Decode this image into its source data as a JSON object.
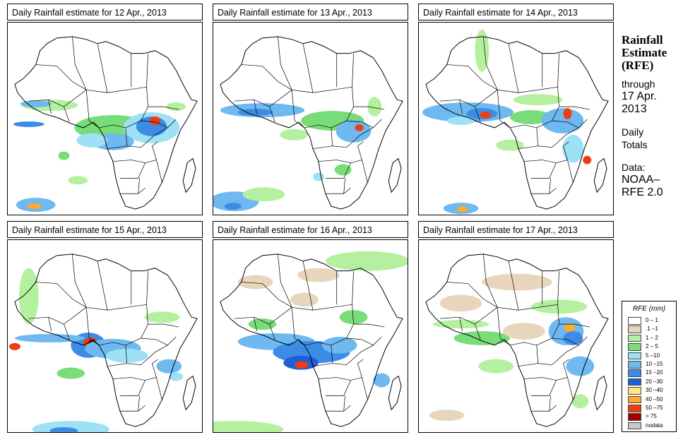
{
  "panels": [
    {
      "title": "Daily Rainfall estimate for  12 Apr., 2013",
      "day": 0
    },
    {
      "title": "Daily Rainfall estimate for  13 Apr., 2013",
      "day": 1
    },
    {
      "title": "Daily Rainfall estimate for  14 Apr., 2013",
      "day": 2
    },
    {
      "title": "Daily Rainfall estimate for  15 Apr., 2013",
      "day": 3
    },
    {
      "title": "Daily Rainfall estimate for  16 Apr., 2013",
      "day": 4
    },
    {
      "title": "Daily Rainfall estimate for  17 Apr., 2013",
      "day": 5
    }
  ],
  "side": {
    "title_line1": "Rainfall",
    "title_line2": "Estimate",
    "title_line3": "(RFE)",
    "through_line1": "through",
    "through_line2": "17 Apr.",
    "through_line3": "2013",
    "totals_line1": "Daily",
    "totals_line2": "Totals",
    "data_line1": "Data:",
    "data_line2": "NOAA–",
    "data_line3": "RFE 2.0"
  },
  "legend": {
    "title": "RFE (mm)",
    "items": [
      {
        "label": "0 – 1",
        "color": "#ffffff"
      },
      {
        "label": ".1 –1",
        "color": "#e8d6bc"
      },
      {
        "label": "1 – 2",
        "color": "#b4f0a0"
      },
      {
        "label": "2 – 5",
        "color": "#78dc78"
      },
      {
        "label": "5 –10",
        "color": "#9ce1f5"
      },
      {
        "label": "10 –15",
        "color": "#6eb9f0"
      },
      {
        "label": "15 –20",
        "color": "#3c8ce6"
      },
      {
        "label": "20 –30",
        "color": "#1e5fd2"
      },
      {
        "label": "30 –40",
        "color": "#ffe682"
      },
      {
        "label": "40 –50",
        "color": "#ffaa28"
      },
      {
        "label": "50 –75",
        "color": "#f03c14"
      },
      {
        "label": "> 75",
        "color": "#a00000"
      },
      {
        "label": "nodata",
        "color": "#c8c8c8"
      }
    ]
  }
}
